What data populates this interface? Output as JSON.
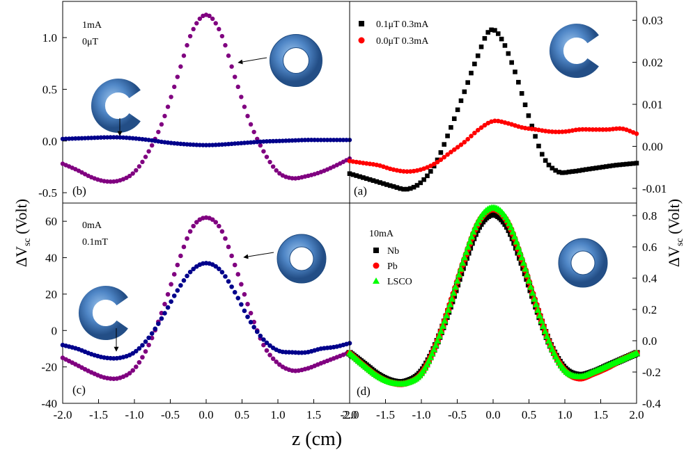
{
  "figure": {
    "xlabel": "z (cm)",
    "ylabel_left": "ΔV",
    "ylabel_right": "ΔV",
    "ylabel_sub": "sc",
    "ylabel_unit": "(Volt)"
  },
  "colors": {
    "purple": "#800080",
    "navy": "#00008B",
    "black": "#000000",
    "red": "#FF0000",
    "green": "#00FF00",
    "ring_fill": "#4F86C6"
  },
  "chart_data": [
    {
      "id": "b",
      "panel_label": "(b)",
      "type": "scatter",
      "annotations": [
        "1mA",
        "0μT"
      ],
      "x_ticks": [
        "-2.0",
        "-1.5",
        "-1.0",
        "-0.5",
        "0.0",
        "0.5",
        "1.0",
        "1.5",
        "2.0"
      ],
      "y_ticks": [
        "-0.5",
        "0.0",
        "0.5",
        "1.0"
      ],
      "xlim": [
        -2.0,
        2.0
      ],
      "ylim": [
        -0.6,
        1.35
      ],
      "icons": [
        "closed-ring-icon",
        "split-ring-icon"
      ],
      "series": [
        {
          "color": "#800080",
          "icon": "closed-ring-icon",
          "x": [
            -2.0,
            -1.8,
            -1.6,
            -1.4,
            -1.2,
            -1.0,
            -0.8,
            -0.6,
            -0.4,
            -0.2,
            0.0,
            0.2,
            0.4,
            0.6,
            0.8,
            1.0,
            1.2,
            1.4,
            1.6,
            1.8,
            2.0
          ],
          "y": [
            -0.22,
            -0.28,
            -0.35,
            -0.39,
            -0.38,
            -0.3,
            -0.1,
            0.2,
            0.62,
            1.05,
            1.22,
            1.05,
            0.62,
            0.2,
            -0.1,
            -0.3,
            -0.36,
            -0.34,
            -0.3,
            -0.24,
            -0.17
          ]
        },
        {
          "color": "#00008B",
          "icon": "split-ring-icon",
          "x": [
            -2.0,
            -1.8,
            -1.6,
            -1.4,
            -1.2,
            -1.0,
            -0.8,
            -0.6,
            -0.4,
            -0.2,
            0.0,
            0.2,
            0.4,
            0.6,
            0.8,
            1.0,
            1.2,
            1.4,
            1.6,
            1.8,
            2.0
          ],
          "y": [
            0.02,
            0.025,
            0.03,
            0.035,
            0.035,
            0.025,
            0.01,
            -0.01,
            -0.025,
            -0.035,
            -0.04,
            -0.035,
            -0.025,
            -0.015,
            -0.005,
            0.0,
            0.005,
            0.01,
            0.01,
            0.01,
            0.01
          ]
        }
      ]
    },
    {
      "id": "a",
      "panel_label": "(a)",
      "type": "scatter",
      "legend_position": "top-left",
      "x_ticks": [],
      "y_ticks": [
        "-0.01",
        "0.00",
        "0.01",
        "0.02",
        "0.03"
      ],
      "xlim": [
        -2.0,
        2.0
      ],
      "ylim": [
        -0.0135,
        0.0345
      ],
      "icons": [
        "split-ring-icon"
      ],
      "series": [
        {
          "name": "0.1μT 0.3mA",
          "marker": "square",
          "color": "#000000",
          "x": [
            -2.0,
            -1.8,
            -1.6,
            -1.4,
            -1.2,
            -1.0,
            -0.8,
            -0.6,
            -0.4,
            -0.2,
            -0.05,
            0.1,
            0.3,
            0.5,
            0.7,
            0.9,
            1.1,
            1.3,
            1.5,
            1.7,
            2.0
          ],
          "y": [
            -0.0065,
            -0.0075,
            -0.0085,
            -0.0095,
            -0.0102,
            -0.0085,
            -0.004,
            0.004,
            0.013,
            0.022,
            0.0275,
            0.026,
            0.018,
            0.007,
            -0.0025,
            -0.006,
            -0.006,
            -0.0055,
            -0.005,
            -0.0045,
            -0.004
          ]
        },
        {
          "name": "0.0μT 0.3mA",
          "marker": "circle",
          "color": "#FF0000",
          "x": [
            -2.0,
            -1.8,
            -1.6,
            -1.4,
            -1.2,
            -1.0,
            -0.8,
            -0.6,
            -0.4,
            -0.2,
            0.0,
            0.2,
            0.4,
            0.6,
            0.8,
            1.0,
            1.2,
            1.4,
            1.6,
            1.8,
            2.0
          ],
          "y": [
            -0.0035,
            -0.004,
            -0.0045,
            -0.0055,
            -0.006,
            -0.0055,
            -0.004,
            -0.0015,
            0.001,
            0.004,
            0.006,
            0.0055,
            0.0045,
            0.004,
            0.0035,
            0.0035,
            0.004,
            0.004,
            0.004,
            0.0042,
            0.003
          ]
        }
      ]
    },
    {
      "id": "c",
      "panel_label": "(c)",
      "type": "scatter",
      "annotations": [
        "0mA",
        "0.1mT"
      ],
      "x_ticks": [
        "-2.0",
        "-1.5",
        "-1.0",
        "-0.5",
        "0.0",
        "0.5",
        "1.0",
        "1.5",
        "2.0"
      ],
      "y_ticks": [
        "-40",
        "-20",
        "0",
        "20",
        "40",
        "60"
      ],
      "xlim": [
        -2.0,
        2.0
      ],
      "ylim": [
        -40,
        70
      ],
      "icons": [
        "closed-ring-icon",
        "split-ring-icon"
      ],
      "series": [
        {
          "color": "#800080",
          "icon": "closed-ring-icon",
          "x": [
            -2.0,
            -1.8,
            -1.6,
            -1.4,
            -1.2,
            -1.0,
            -0.8,
            -0.6,
            -0.4,
            -0.2,
            0.0,
            0.2,
            0.4,
            0.6,
            0.8,
            1.0,
            1.2,
            1.4,
            1.6,
            1.8,
            2.0
          ],
          "y": [
            -15,
            -19,
            -23,
            -26,
            -26,
            -21,
            -8,
            12,
            36,
            56,
            62,
            56,
            36,
            12,
            -8,
            -18,
            -22,
            -21,
            -18,
            -15,
            -12
          ]
        },
        {
          "color": "#00008B",
          "icon": "split-ring-icon",
          "x": [
            -2.0,
            -1.8,
            -1.6,
            -1.4,
            -1.2,
            -1.0,
            -0.8,
            -0.6,
            -0.4,
            -0.2,
            0.0,
            0.2,
            0.4,
            0.6,
            0.8,
            1.0,
            1.2,
            1.4,
            1.6,
            1.8,
            2.0
          ],
          "y": [
            -8,
            -10,
            -13,
            -15,
            -15,
            -12,
            -4,
            8,
            22,
            33,
            37,
            33,
            21,
            6,
            -5,
            -11,
            -12,
            -12,
            -10,
            -9,
            -7
          ]
        }
      ]
    },
    {
      "id": "d",
      "panel_label": "(d)",
      "type": "scatter",
      "annotations": [
        "10mA"
      ],
      "legend_position": "top-left",
      "x_ticks": [
        "-2.0",
        "-1.5",
        "-1.0",
        "-0.5",
        "0.0",
        "0.5",
        "1.0",
        "1.5",
        "2.0"
      ],
      "y_ticks": [
        "-0.4",
        "-0.2",
        "0.0",
        "0.2",
        "0.4",
        "0.6",
        "0.8"
      ],
      "xlim": [
        -2.0,
        2.0
      ],
      "ylim": [
        -0.4,
        0.88
      ],
      "icons": [
        "closed-ring-icon"
      ],
      "series": [
        {
          "name": "Nb",
          "marker": "square",
          "color": "#000000",
          "x": [
            -2.0,
            -1.8,
            -1.6,
            -1.4,
            -1.2,
            -1.0,
            -0.8,
            -0.6,
            -0.4,
            -0.2,
            0.0,
            0.2,
            0.4,
            0.6,
            0.8,
            1.0,
            1.2,
            1.4,
            1.6,
            1.8,
            2.0
          ],
          "y": [
            -0.08,
            -0.15,
            -0.22,
            -0.26,
            -0.26,
            -0.2,
            -0.03,
            0.22,
            0.5,
            0.73,
            0.81,
            0.73,
            0.5,
            0.22,
            -0.03,
            -0.18,
            -0.22,
            -0.2,
            -0.16,
            -0.12,
            -0.08
          ]
        },
        {
          "name": "Pb",
          "marker": "circle",
          "color": "#FF0000",
          "x": [
            -2.0,
            -1.8,
            -1.6,
            -1.4,
            -1.2,
            -1.0,
            -0.8,
            -0.6,
            -0.4,
            -0.2,
            0.0,
            0.2,
            0.4,
            0.6,
            0.8,
            1.0,
            1.2,
            1.4,
            1.6,
            1.8,
            2.0
          ],
          "y": [
            -0.08,
            -0.16,
            -0.23,
            -0.27,
            -0.27,
            -0.21,
            -0.03,
            0.23,
            0.52,
            0.76,
            0.84,
            0.76,
            0.52,
            0.23,
            -0.03,
            -0.19,
            -0.24,
            -0.21,
            -0.17,
            -0.12,
            -0.08
          ]
        },
        {
          "name": "LSCO",
          "marker": "triangle",
          "color": "#00FF00",
          "x": [
            -2.0,
            -1.8,
            -1.6,
            -1.4,
            -1.2,
            -1.0,
            -0.8,
            -0.6,
            -0.4,
            -0.2,
            0.0,
            0.2,
            0.4,
            0.6,
            0.8,
            1.0,
            1.2,
            1.4,
            1.6,
            1.8,
            2.0
          ],
          "y": [
            -0.08,
            -0.16,
            -0.23,
            -0.27,
            -0.27,
            -0.21,
            -0.03,
            0.23,
            0.53,
            0.77,
            0.85,
            0.77,
            0.53,
            0.23,
            -0.03,
            -0.19,
            -0.23,
            -0.2,
            -0.16,
            -0.12,
            -0.08
          ]
        }
      ]
    }
  ]
}
